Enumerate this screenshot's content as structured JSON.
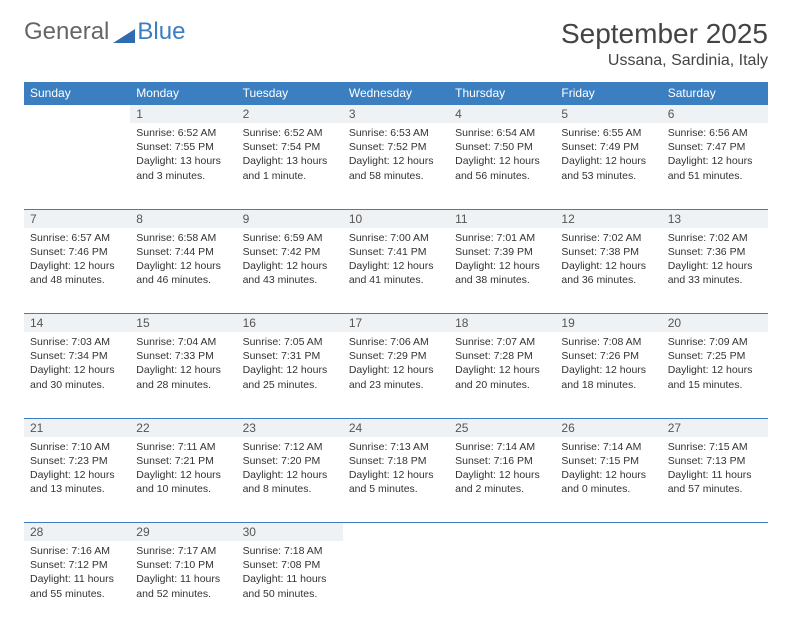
{
  "logo": {
    "part1": "General",
    "part2": "Blue"
  },
  "title": "September 2025",
  "location": "Ussana, Sardinia, Italy",
  "colors": {
    "accent": "#3b7fc1",
    "daynum_bg": "#eef2f5"
  },
  "weekdays": [
    "Sunday",
    "Monday",
    "Tuesday",
    "Wednesday",
    "Thursday",
    "Friday",
    "Saturday"
  ],
  "weeks": [
    [
      null,
      {
        "n": "1",
        "sunrise": "Sunrise: 6:52 AM",
        "sunset": "Sunset: 7:55 PM",
        "daylight": "Daylight: 13 hours and 3 minutes."
      },
      {
        "n": "2",
        "sunrise": "Sunrise: 6:52 AM",
        "sunset": "Sunset: 7:54 PM",
        "daylight": "Daylight: 13 hours and 1 minute."
      },
      {
        "n": "3",
        "sunrise": "Sunrise: 6:53 AM",
        "sunset": "Sunset: 7:52 PM",
        "daylight": "Daylight: 12 hours and 58 minutes."
      },
      {
        "n": "4",
        "sunrise": "Sunrise: 6:54 AM",
        "sunset": "Sunset: 7:50 PM",
        "daylight": "Daylight: 12 hours and 56 minutes."
      },
      {
        "n": "5",
        "sunrise": "Sunrise: 6:55 AM",
        "sunset": "Sunset: 7:49 PM",
        "daylight": "Daylight: 12 hours and 53 minutes."
      },
      {
        "n": "6",
        "sunrise": "Sunrise: 6:56 AM",
        "sunset": "Sunset: 7:47 PM",
        "daylight": "Daylight: 12 hours and 51 minutes."
      }
    ],
    [
      {
        "n": "7",
        "sunrise": "Sunrise: 6:57 AM",
        "sunset": "Sunset: 7:46 PM",
        "daylight": "Daylight: 12 hours and 48 minutes."
      },
      {
        "n": "8",
        "sunrise": "Sunrise: 6:58 AM",
        "sunset": "Sunset: 7:44 PM",
        "daylight": "Daylight: 12 hours and 46 minutes."
      },
      {
        "n": "9",
        "sunrise": "Sunrise: 6:59 AM",
        "sunset": "Sunset: 7:42 PM",
        "daylight": "Daylight: 12 hours and 43 minutes."
      },
      {
        "n": "10",
        "sunrise": "Sunrise: 7:00 AM",
        "sunset": "Sunset: 7:41 PM",
        "daylight": "Daylight: 12 hours and 41 minutes."
      },
      {
        "n": "11",
        "sunrise": "Sunrise: 7:01 AM",
        "sunset": "Sunset: 7:39 PM",
        "daylight": "Daylight: 12 hours and 38 minutes."
      },
      {
        "n": "12",
        "sunrise": "Sunrise: 7:02 AM",
        "sunset": "Sunset: 7:38 PM",
        "daylight": "Daylight: 12 hours and 36 minutes."
      },
      {
        "n": "13",
        "sunrise": "Sunrise: 7:02 AM",
        "sunset": "Sunset: 7:36 PM",
        "daylight": "Daylight: 12 hours and 33 minutes."
      }
    ],
    [
      {
        "n": "14",
        "sunrise": "Sunrise: 7:03 AM",
        "sunset": "Sunset: 7:34 PM",
        "daylight": "Daylight: 12 hours and 30 minutes."
      },
      {
        "n": "15",
        "sunrise": "Sunrise: 7:04 AM",
        "sunset": "Sunset: 7:33 PM",
        "daylight": "Daylight: 12 hours and 28 minutes."
      },
      {
        "n": "16",
        "sunrise": "Sunrise: 7:05 AM",
        "sunset": "Sunset: 7:31 PM",
        "daylight": "Daylight: 12 hours and 25 minutes."
      },
      {
        "n": "17",
        "sunrise": "Sunrise: 7:06 AM",
        "sunset": "Sunset: 7:29 PM",
        "daylight": "Daylight: 12 hours and 23 minutes."
      },
      {
        "n": "18",
        "sunrise": "Sunrise: 7:07 AM",
        "sunset": "Sunset: 7:28 PM",
        "daylight": "Daylight: 12 hours and 20 minutes."
      },
      {
        "n": "19",
        "sunrise": "Sunrise: 7:08 AM",
        "sunset": "Sunset: 7:26 PM",
        "daylight": "Daylight: 12 hours and 18 minutes."
      },
      {
        "n": "20",
        "sunrise": "Sunrise: 7:09 AM",
        "sunset": "Sunset: 7:25 PM",
        "daylight": "Daylight: 12 hours and 15 minutes."
      }
    ],
    [
      {
        "n": "21",
        "sunrise": "Sunrise: 7:10 AM",
        "sunset": "Sunset: 7:23 PM",
        "daylight": "Daylight: 12 hours and 13 minutes."
      },
      {
        "n": "22",
        "sunrise": "Sunrise: 7:11 AM",
        "sunset": "Sunset: 7:21 PM",
        "daylight": "Daylight: 12 hours and 10 minutes."
      },
      {
        "n": "23",
        "sunrise": "Sunrise: 7:12 AM",
        "sunset": "Sunset: 7:20 PM",
        "daylight": "Daylight: 12 hours and 8 minutes."
      },
      {
        "n": "24",
        "sunrise": "Sunrise: 7:13 AM",
        "sunset": "Sunset: 7:18 PM",
        "daylight": "Daylight: 12 hours and 5 minutes."
      },
      {
        "n": "25",
        "sunrise": "Sunrise: 7:14 AM",
        "sunset": "Sunset: 7:16 PM",
        "daylight": "Daylight: 12 hours and 2 minutes."
      },
      {
        "n": "26",
        "sunrise": "Sunrise: 7:14 AM",
        "sunset": "Sunset: 7:15 PM",
        "daylight": "Daylight: 12 hours and 0 minutes."
      },
      {
        "n": "27",
        "sunrise": "Sunrise: 7:15 AM",
        "sunset": "Sunset: 7:13 PM",
        "daylight": "Daylight: 11 hours and 57 minutes."
      }
    ],
    [
      {
        "n": "28",
        "sunrise": "Sunrise: 7:16 AM",
        "sunset": "Sunset: 7:12 PM",
        "daylight": "Daylight: 11 hours and 55 minutes."
      },
      {
        "n": "29",
        "sunrise": "Sunrise: 7:17 AM",
        "sunset": "Sunset: 7:10 PM",
        "daylight": "Daylight: 11 hours and 52 minutes."
      },
      {
        "n": "30",
        "sunrise": "Sunrise: 7:18 AM",
        "sunset": "Sunset: 7:08 PM",
        "daylight": "Daylight: 11 hours and 50 minutes."
      },
      null,
      null,
      null,
      null
    ]
  ]
}
